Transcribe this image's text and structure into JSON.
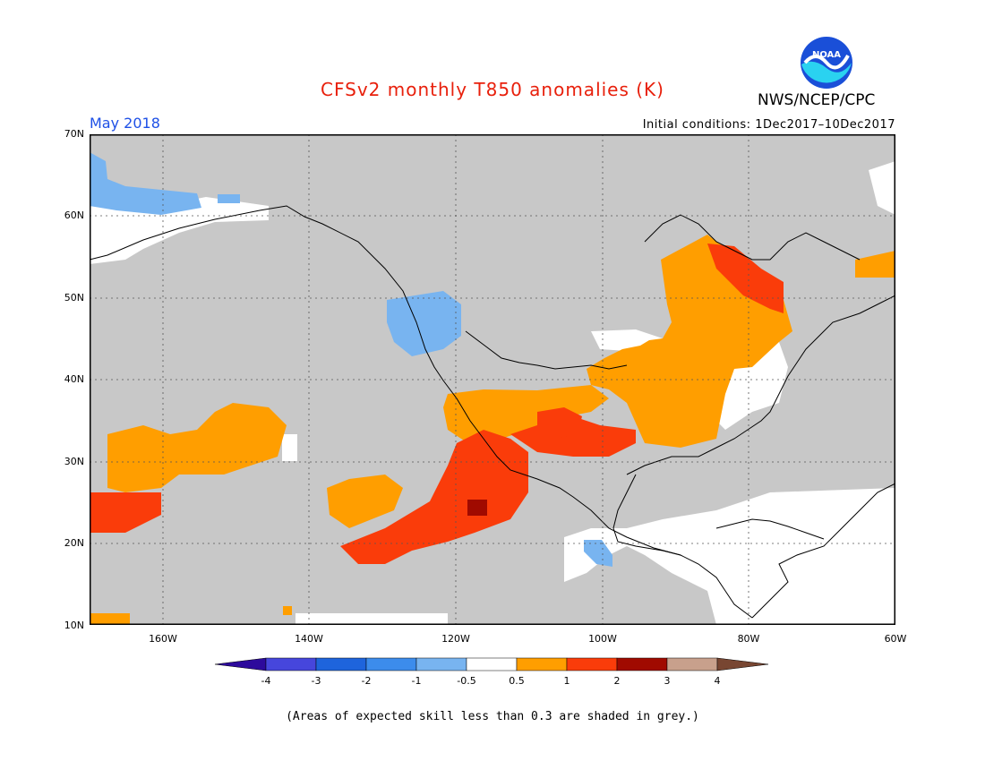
{
  "header": {
    "title": "CFSv2 monthly T850 anomalies (K)",
    "month": "May 2018",
    "initial_conditions": "Initial conditions: 1Dec2017–10Dec2017",
    "agency": "NWS/NCEP/CPC",
    "logo_text": "NOAA"
  },
  "map": {
    "lat_labels": [
      "70N",
      "60N",
      "50N",
      "40N",
      "30N",
      "20N",
      "10N"
    ],
    "lon_labels": [
      "160W",
      "140W",
      "120W",
      "100W",
      "80W",
      "60W"
    ],
    "colors": {
      "skill_grey": "#c8c8c8",
      "neutral": "#ffffff",
      "cool_light": "#78b4f0",
      "cool": "#5096eb",
      "warm_orange": "#ff9e00",
      "warm_red": "#fa3c0a",
      "warm_dark": "#a00a00"
    }
  },
  "colorbar": {
    "labels": [
      "-4",
      "-3",
      "-2",
      "-1",
      "-0.5",
      "0.5",
      "1",
      "2",
      "3",
      "4"
    ],
    "colors": [
      "#2d0a9c",
      "#4646dc",
      "#1e64dc",
      "#3c8cec",
      "#78b4f0",
      "#ffffff",
      "#ff9e00",
      "#fa3c0a",
      "#a00a00",
      "#c8a08c",
      "#784632"
    ]
  },
  "footnote": "(Areas of expected skill less than 0.3 are shaded in grey.)"
}
